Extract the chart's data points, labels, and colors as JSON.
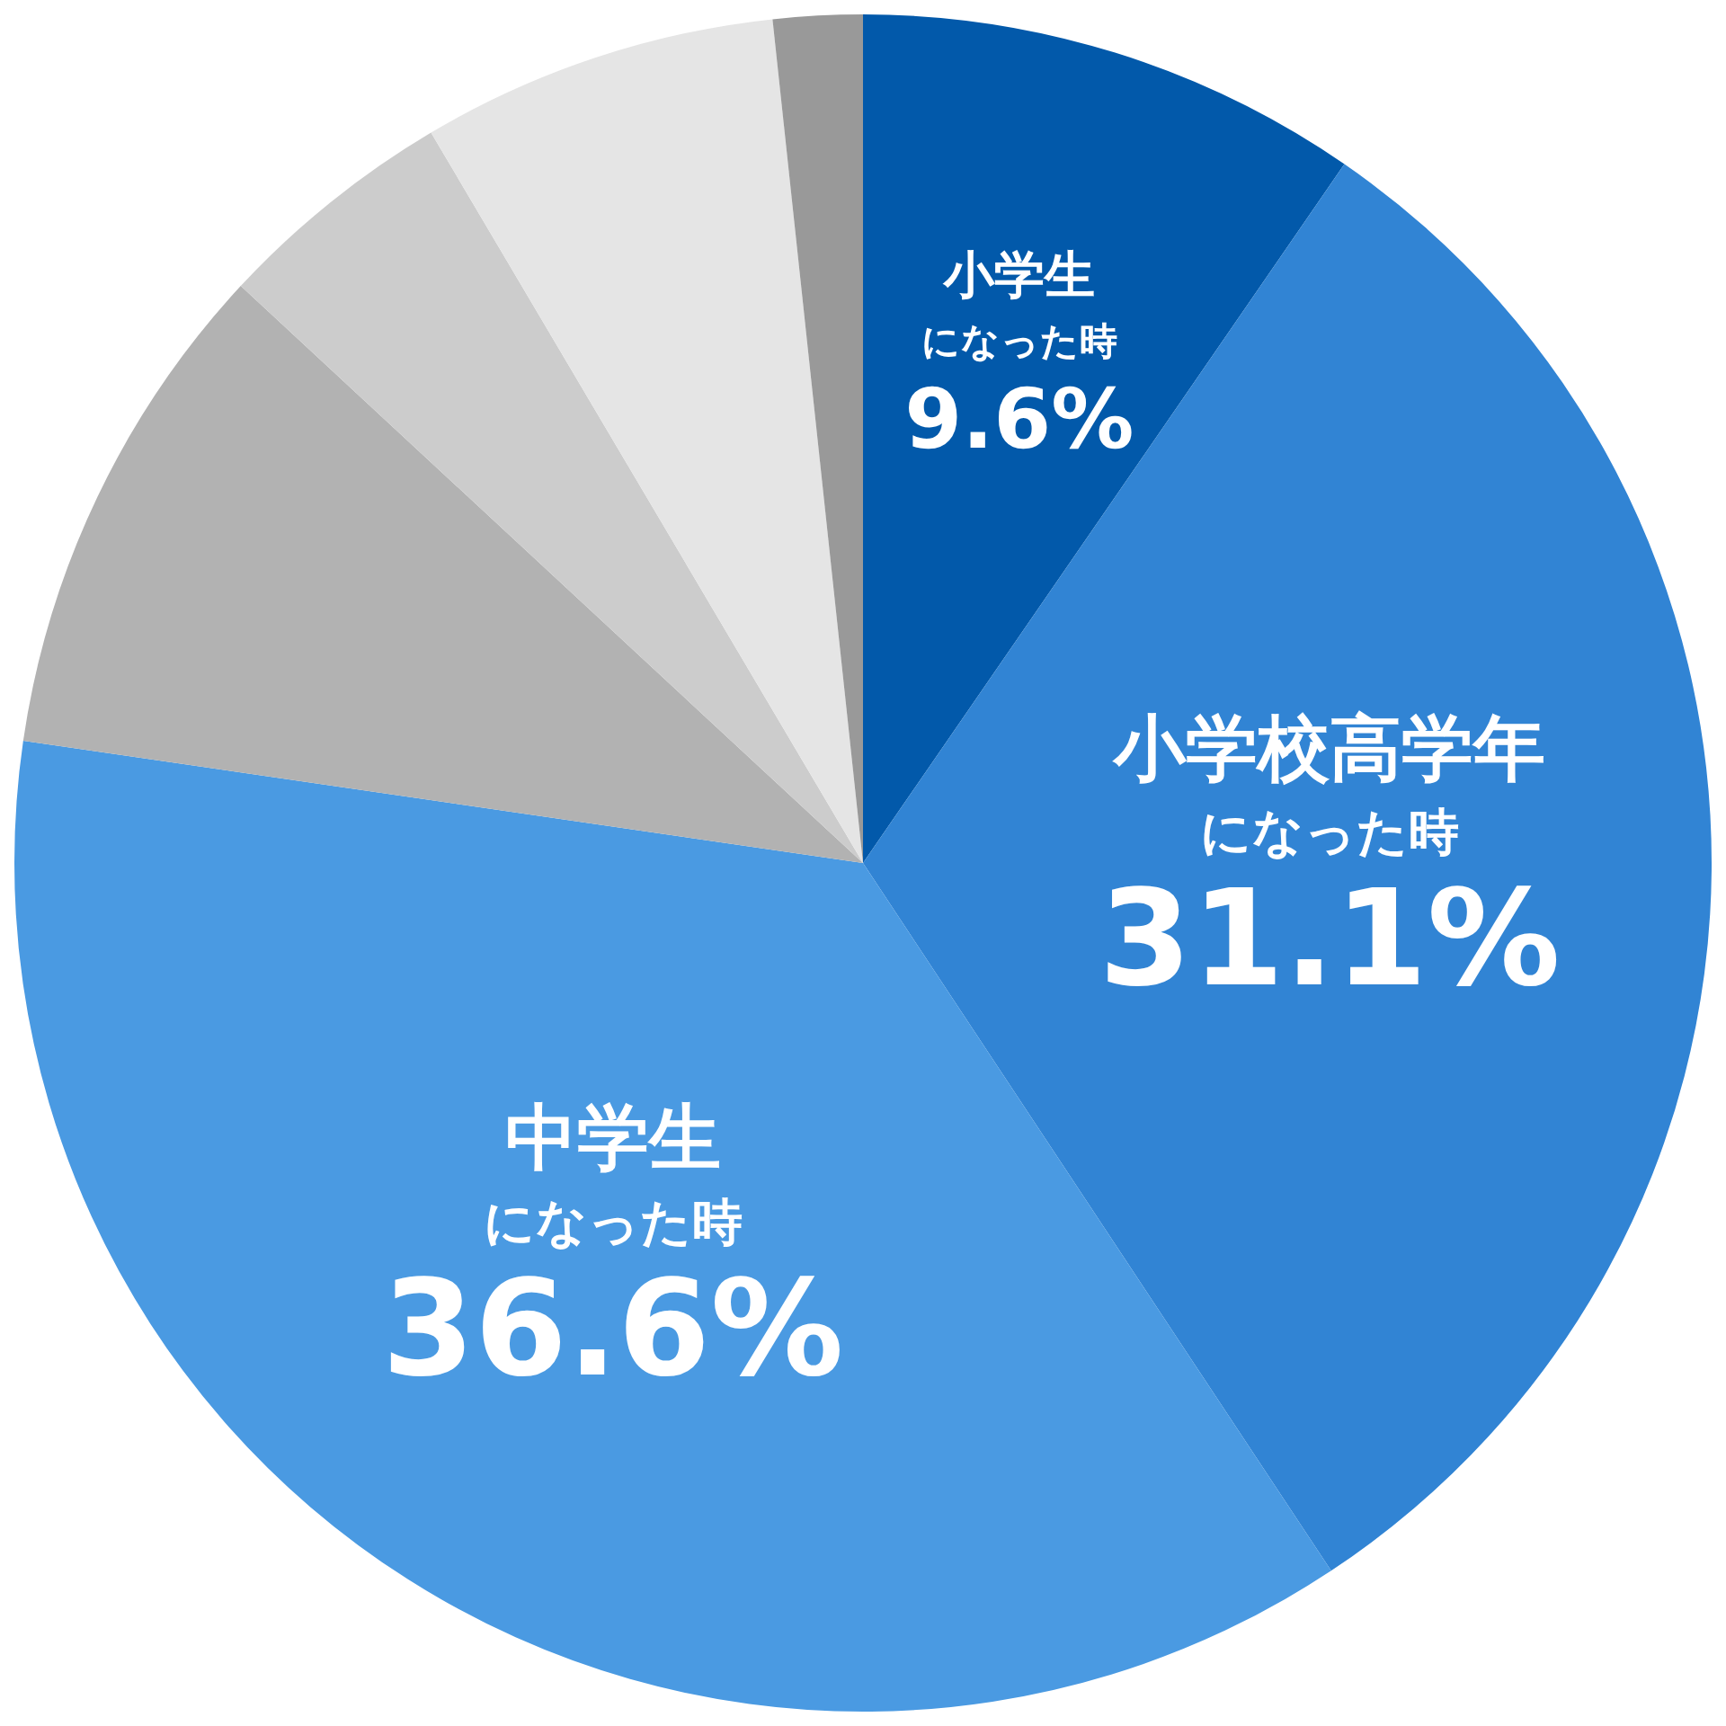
{
  "chart_data": {
    "type": "pie",
    "categories": [
      "小学生になった時",
      "小学校高学年になった時",
      "中学生になった時",
      null,
      null,
      null,
      null
    ],
    "values": [
      9.6,
      31.1,
      36.6,
      9.6,
      4.6,
      6.8,
      1.7
    ],
    "colors": [
      "#0259aa",
      "#3184d4",
      "#4a9ae2",
      "#b2b2b2",
      "#cccccc",
      "#e5e5e5",
      "#999999"
    ],
    "value_labels": [
      "9.6%",
      "31.1%",
      "36.6%",
      null,
      null,
      null,
      null
    ],
    "legend": false
  }
}
